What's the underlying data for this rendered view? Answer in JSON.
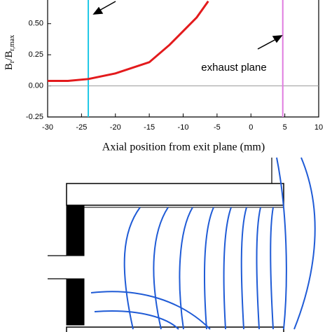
{
  "chart_data": {
    "type": "line",
    "xlabel": "Axial position from exit plane (mm)",
    "ylabel_parts": [
      "B",
      "r",
      "/B",
      "r,max"
    ],
    "annotation": "exhaust plane",
    "x": [
      -30,
      -27,
      -24,
      -20,
      -15,
      -12,
      -10,
      -8,
      -6.3
    ],
    "series": [
      {
        "color": "#e31a1c",
        "values": [
          0.04,
          0.04,
          0.055,
          0.1,
          0.19,
          0.33,
          0.44,
          0.55,
          0.68
        ]
      }
    ],
    "vlines": [
      {
        "x": -24,
        "color": "#1ec8e6"
      },
      {
        "x": 4.7,
        "color": "#e07be0"
      }
    ],
    "hline": {
      "y": 0,
      "color": "#999999"
    },
    "xlim": [
      -30,
      10
    ],
    "ylim": [
      -0.25,
      0.69
    ],
    "xticks": [
      -30,
      -25,
      -20,
      -15,
      -10,
      -5,
      0,
      5,
      10
    ],
    "yticks": [
      {
        "value": -0.25,
        "label": "-0.25"
      },
      {
        "value": 0,
        "label": "0.00"
      },
      {
        "value": 0.25,
        "label": "0.25"
      },
      {
        "value": 0.5,
        "label": "0.50"
      }
    ]
  }
}
